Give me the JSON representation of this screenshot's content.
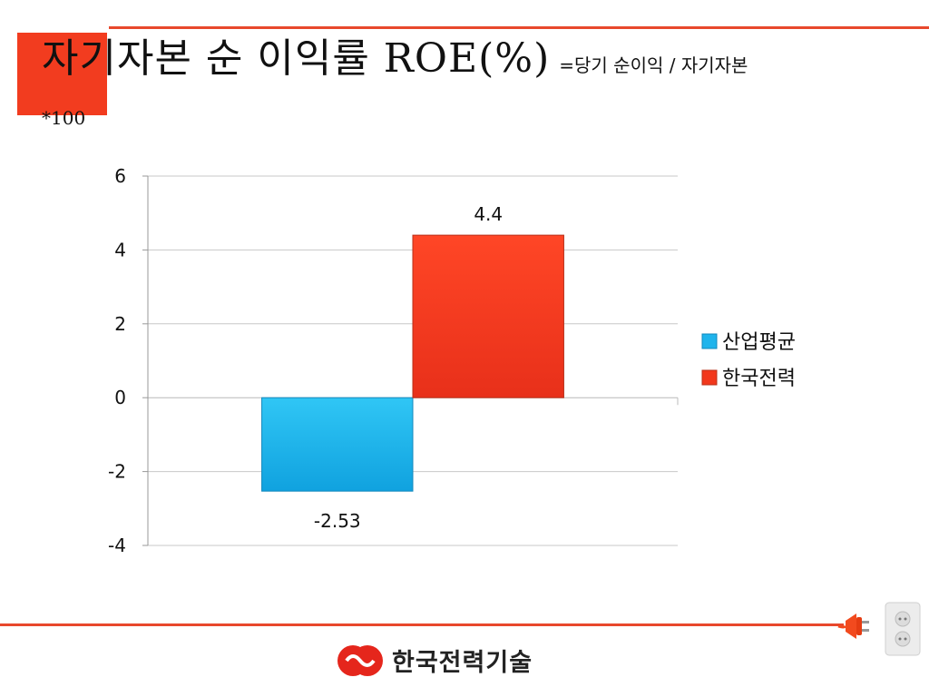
{
  "slide": {
    "title": "자기자본 순 이익률 ROE(%)",
    "formula": "=당기 순이익 / 자기자본",
    "formula_cont": "*100",
    "logo_text": "한국전력기술"
  },
  "colors": {
    "accent": "#e8482c",
    "series_industry": "#1fb4ec",
    "series_kepco": "#f2381c"
  },
  "icons": [
    "logo-icon",
    "plug-icon",
    "outlet-icon"
  ],
  "chart_data": {
    "type": "bar",
    "title": "",
    "xlabel": "",
    "ylabel": "",
    "ylim": [
      -4,
      6
    ],
    "yticks": [
      6,
      4,
      2,
      0,
      -2,
      -4
    ],
    "grid": true,
    "legend_position": "right",
    "categories": [
      ""
    ],
    "series": [
      {
        "name": "산업평균",
        "values": [
          -2.53
        ],
        "labels": [
          "-2.53"
        ],
        "color": "#1fb4ec"
      },
      {
        "name": "한국전력",
        "values": [
          4.4
        ],
        "labels": [
          "4.4"
        ],
        "color": "#f2381c"
      }
    ]
  }
}
